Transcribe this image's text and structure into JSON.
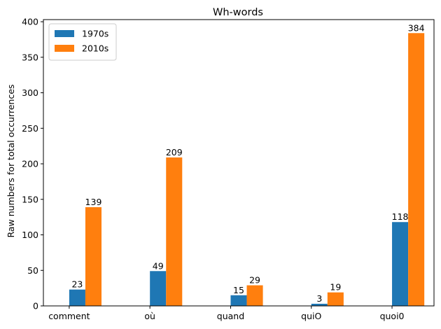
{
  "chart_data": {
    "type": "bar",
    "title": "Wh-words",
    "xlabel": "",
    "ylabel": "Raw numbers for total occurrences",
    "categories": [
      "comment",
      "où",
      "quand",
      "quiO",
      "quoi0"
    ],
    "series": [
      {
        "name": "1970s",
        "values": [
          23,
          49,
          15,
          3,
          118
        ],
        "color": "#1f77b4"
      },
      {
        "name": "2010s",
        "values": [
          139,
          209,
          29,
          19,
          384
        ],
        "color": "#ff7f0e"
      }
    ],
    "ylim": [
      0,
      403
    ],
    "yticks": [
      0,
      50,
      100,
      150,
      200,
      250,
      300,
      350,
      400
    ],
    "grid": false,
    "legend": "top-left",
    "show_value_labels": true
  }
}
